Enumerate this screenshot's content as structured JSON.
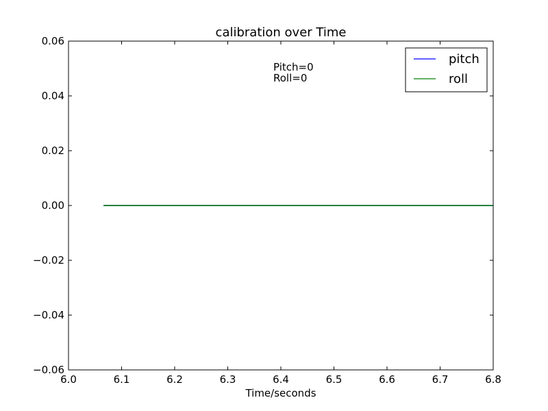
{
  "chart_data": {
    "type": "line",
    "title": "calibration over Time",
    "xlabel": "Time/seconds",
    "ylabel": "",
    "xlim": [
      6.0,
      6.8
    ],
    "ylim": [
      -0.06,
      0.06
    ],
    "x_ticks": [
      6.0,
      6.1,
      6.2,
      6.3,
      6.4,
      6.5,
      6.6,
      6.7,
      6.8
    ],
    "x_tick_labels": [
      "6.0",
      "6.1",
      "6.2",
      "6.3",
      "6.4",
      "6.5",
      "6.6",
      "6.7",
      "6.8"
    ],
    "y_ticks": [
      -0.06,
      -0.04,
      -0.02,
      0.0,
      0.02,
      0.04,
      0.06
    ],
    "y_tick_labels": [
      "−0.06",
      "−0.04",
      "−0.02",
      "0.00",
      "0.02",
      "0.04",
      "0.06"
    ],
    "series": [
      {
        "name": "pitch",
        "color": "#0000ff",
        "x": [
          6.066,
          6.8
        ],
        "y": [
          0,
          0
        ]
      },
      {
        "name": "roll",
        "color": "#008000",
        "x": [
          6.066,
          6.8
        ],
        "y": [
          0,
          0
        ]
      }
    ],
    "annotations": [
      "Pitch=0",
      "Roll=0"
    ],
    "legend_position": "top-right",
    "grid": false
  }
}
